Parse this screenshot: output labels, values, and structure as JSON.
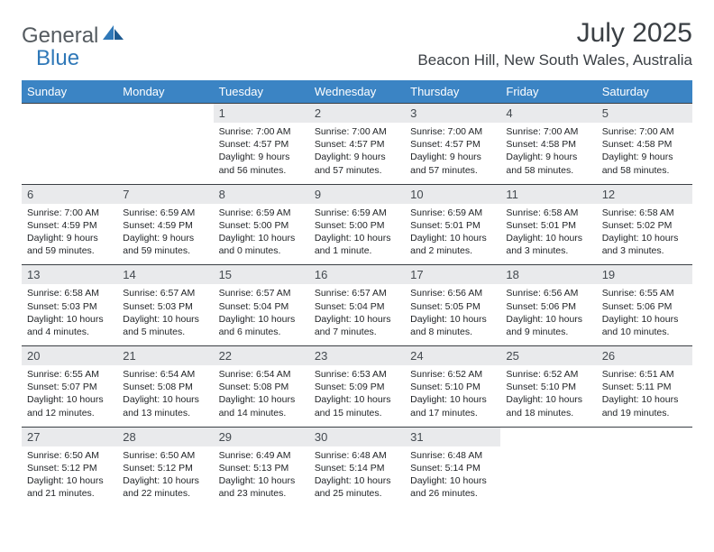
{
  "brand": {
    "text1": "General",
    "text2": "Blue"
  },
  "title": "July 2025",
  "location": "Beacon Hill, New South Wales, Australia",
  "colors": {
    "header_bg": "#3b84c4",
    "header_text": "#ffffff",
    "daynum_bg": "#e9eaec",
    "body_text": "#222528",
    "rule": "#3a3f44",
    "brand_gray": "#555b60",
    "brand_blue": "#2f78b8"
  },
  "weekdays": [
    "Sunday",
    "Monday",
    "Tuesday",
    "Wednesday",
    "Thursday",
    "Friday",
    "Saturday"
  ],
  "first_weekday_index": 2,
  "days": [
    {
      "n": 1,
      "sunrise": "7:00 AM",
      "sunset": "4:57 PM",
      "dl": "9 hours and 56 minutes."
    },
    {
      "n": 2,
      "sunrise": "7:00 AM",
      "sunset": "4:57 PM",
      "dl": "9 hours and 57 minutes."
    },
    {
      "n": 3,
      "sunrise": "7:00 AM",
      "sunset": "4:57 PM",
      "dl": "9 hours and 57 minutes."
    },
    {
      "n": 4,
      "sunrise": "7:00 AM",
      "sunset": "4:58 PM",
      "dl": "9 hours and 58 minutes."
    },
    {
      "n": 5,
      "sunrise": "7:00 AM",
      "sunset": "4:58 PM",
      "dl": "9 hours and 58 minutes."
    },
    {
      "n": 6,
      "sunrise": "7:00 AM",
      "sunset": "4:59 PM",
      "dl": "9 hours and 59 minutes."
    },
    {
      "n": 7,
      "sunrise": "6:59 AM",
      "sunset": "4:59 PM",
      "dl": "9 hours and 59 minutes."
    },
    {
      "n": 8,
      "sunrise": "6:59 AM",
      "sunset": "5:00 PM",
      "dl": "10 hours and 0 minutes."
    },
    {
      "n": 9,
      "sunrise": "6:59 AM",
      "sunset": "5:00 PM",
      "dl": "10 hours and 1 minute."
    },
    {
      "n": 10,
      "sunrise": "6:59 AM",
      "sunset": "5:01 PM",
      "dl": "10 hours and 2 minutes."
    },
    {
      "n": 11,
      "sunrise": "6:58 AM",
      "sunset": "5:01 PM",
      "dl": "10 hours and 3 minutes."
    },
    {
      "n": 12,
      "sunrise": "6:58 AM",
      "sunset": "5:02 PM",
      "dl": "10 hours and 3 minutes."
    },
    {
      "n": 13,
      "sunrise": "6:58 AM",
      "sunset": "5:03 PM",
      "dl": "10 hours and 4 minutes."
    },
    {
      "n": 14,
      "sunrise": "6:57 AM",
      "sunset": "5:03 PM",
      "dl": "10 hours and 5 minutes."
    },
    {
      "n": 15,
      "sunrise": "6:57 AM",
      "sunset": "5:04 PM",
      "dl": "10 hours and 6 minutes."
    },
    {
      "n": 16,
      "sunrise": "6:57 AM",
      "sunset": "5:04 PM",
      "dl": "10 hours and 7 minutes."
    },
    {
      "n": 17,
      "sunrise": "6:56 AM",
      "sunset": "5:05 PM",
      "dl": "10 hours and 8 minutes."
    },
    {
      "n": 18,
      "sunrise": "6:56 AM",
      "sunset": "5:06 PM",
      "dl": "10 hours and 9 minutes."
    },
    {
      "n": 19,
      "sunrise": "6:55 AM",
      "sunset": "5:06 PM",
      "dl": "10 hours and 10 minutes."
    },
    {
      "n": 20,
      "sunrise": "6:55 AM",
      "sunset": "5:07 PM",
      "dl": "10 hours and 12 minutes."
    },
    {
      "n": 21,
      "sunrise": "6:54 AM",
      "sunset": "5:08 PM",
      "dl": "10 hours and 13 minutes."
    },
    {
      "n": 22,
      "sunrise": "6:54 AM",
      "sunset": "5:08 PM",
      "dl": "10 hours and 14 minutes."
    },
    {
      "n": 23,
      "sunrise": "6:53 AM",
      "sunset": "5:09 PM",
      "dl": "10 hours and 15 minutes."
    },
    {
      "n": 24,
      "sunrise": "6:52 AM",
      "sunset": "5:10 PM",
      "dl": "10 hours and 17 minutes."
    },
    {
      "n": 25,
      "sunrise": "6:52 AM",
      "sunset": "5:10 PM",
      "dl": "10 hours and 18 minutes."
    },
    {
      "n": 26,
      "sunrise": "6:51 AM",
      "sunset": "5:11 PM",
      "dl": "10 hours and 19 minutes."
    },
    {
      "n": 27,
      "sunrise": "6:50 AM",
      "sunset": "5:12 PM",
      "dl": "10 hours and 21 minutes."
    },
    {
      "n": 28,
      "sunrise": "6:50 AM",
      "sunset": "5:12 PM",
      "dl": "10 hours and 22 minutes."
    },
    {
      "n": 29,
      "sunrise": "6:49 AM",
      "sunset": "5:13 PM",
      "dl": "10 hours and 23 minutes."
    },
    {
      "n": 30,
      "sunrise": "6:48 AM",
      "sunset": "5:14 PM",
      "dl": "10 hours and 25 minutes."
    },
    {
      "n": 31,
      "sunrise": "6:48 AM",
      "sunset": "5:14 PM",
      "dl": "10 hours and 26 minutes."
    }
  ],
  "labels": {
    "sunrise": "Sunrise:",
    "sunset": "Sunset:",
    "daylight": "Daylight:"
  }
}
